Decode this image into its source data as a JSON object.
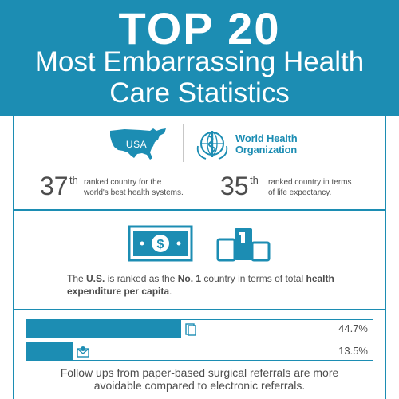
{
  "header": {
    "title": "TOP 20",
    "subtitle_line1": "Most Embarrassing Health",
    "subtitle_line2": "Care Statistics"
  },
  "logos": {
    "usa_label": "USA",
    "who_line1": "World Health",
    "who_line2": "Organization"
  },
  "rankings": [
    {
      "number": "37",
      "suffix": "th",
      "text_line1": "ranked country for the",
      "text_line2": "world's best health systems."
    },
    {
      "number": "35",
      "suffix": "th",
      "text_line1": "ranked country in terms",
      "text_line2": "of life expectancy."
    }
  ],
  "expenditure": {
    "part1": "The ",
    "bold1": "U.S.",
    "part2": " is ranked as the ",
    "bold2": "No. 1",
    "part3": " country in terms of total ",
    "bold3": "health expenditure per capita",
    "part4": "."
  },
  "bars": [
    {
      "label": "44.7%",
      "fill_fraction": 0.447,
      "icon": "paper-document-icon"
    },
    {
      "label": "13.5%",
      "fill_fraction": 0.135,
      "icon": "email-envelope-icon"
    }
  ],
  "followups": {
    "line1": "Follow ups from paper-based surgical referrals are more",
    "line2": "avoidable compared to electronic referrals."
  },
  "colors": {
    "brand_blue": "#1c8db3",
    "text_gray": "#4d4d4d",
    "background": "#ffffff"
  }
}
